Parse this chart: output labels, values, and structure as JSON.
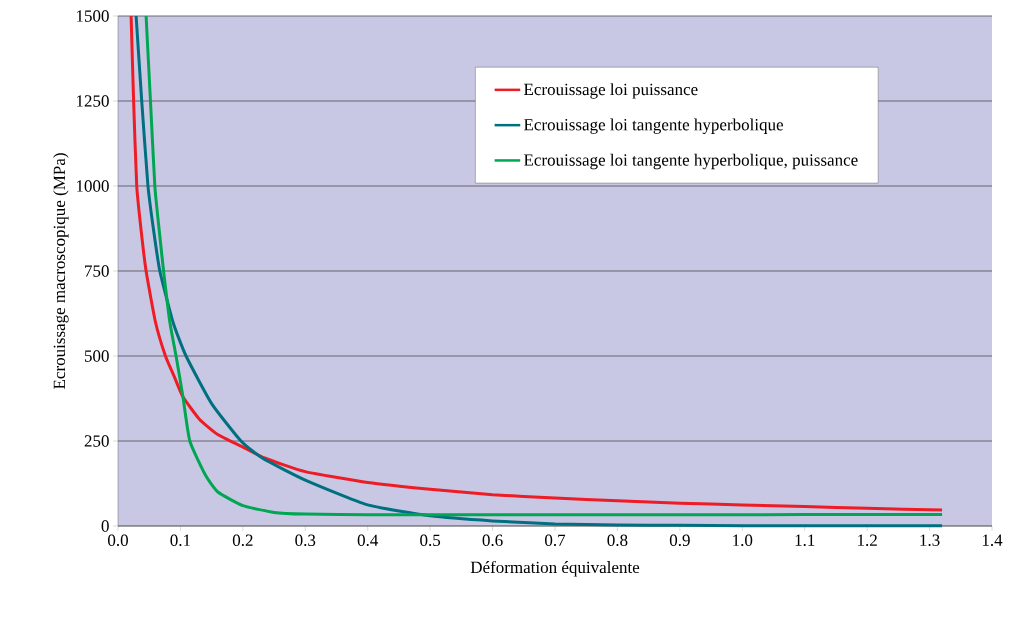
{
  "chart_data": {
    "type": "line",
    "xlabel": "Déformation équivalente",
    "ylabel": "Ecrouissage macroscopique (MPa)",
    "xlim": [
      0,
      1.4
    ],
    "ylim": [
      0,
      1500
    ],
    "xticks": [
      {
        "value": 0,
        "label": "0.0"
      },
      {
        "value": 0.1,
        "label": "0.1"
      },
      {
        "value": 0.2,
        "label": "0.2"
      },
      {
        "value": 0.3,
        "label": "0.3"
      },
      {
        "value": 0.4,
        "label": "0.4"
      },
      {
        "value": 0.5,
        "label": "0.5"
      },
      {
        "value": 0.6,
        "label": "0.6"
      },
      {
        "value": 0.7,
        "label": "0.7"
      },
      {
        "value": 0.8,
        "label": "0.8"
      },
      {
        "value": 0.9,
        "label": "0.9"
      },
      {
        "value": 1.0,
        "label": "1.0"
      },
      {
        "value": 1.1,
        "label": "1.1"
      },
      {
        "value": 1.2,
        "label": "1.2"
      },
      {
        "value": 1.3,
        "label": "1.3"
      },
      {
        "value": 1.4,
        "label": "1.4"
      }
    ],
    "yticks": [
      0,
      250,
      500,
      750,
      1000,
      1250,
      1500
    ],
    "grid": "y",
    "legend": "top right",
    "marker": "none",
    "line_style": "solid",
    "series": [
      {
        "name": "Ecrouissage loi puissance",
        "color": "#ee1c25",
        "x": [
          0.021,
          0.025,
          0.03,
          0.037,
          0.045,
          0.06,
          0.076,
          0.09,
          0.104,
          0.13,
          0.159,
          0.2,
          0.235,
          0.3,
          0.4,
          0.5,
          0.6,
          0.7,
          0.8,
          0.9,
          1.0,
          1.1,
          1.2,
          1.32
        ],
        "values": [
          1500,
          1250,
          1000,
          870,
          750,
          600,
          500,
          440,
          380,
          315,
          270,
          232,
          200,
          160,
          128,
          108,
          92,
          82,
          74,
          67,
          62,
          57,
          52,
          47
        ]
      },
      {
        "name": "Ecrouissage loi tangente hyperbolique",
        "color": "#006f7f",
        "x": [
          0.029,
          0.038,
          0.048,
          0.057,
          0.067,
          0.088,
          0.109,
          0.15,
          0.197,
          0.231,
          0.3,
          0.4,
          0.5,
          0.6,
          0.7,
          0.8,
          0.9,
          1.0,
          1.1,
          1.2,
          1.32
        ],
        "values": [
          1500,
          1250,
          1000,
          870,
          750,
          600,
          500,
          360,
          250,
          200,
          135,
          62,
          30,
          15,
          6,
          3,
          2,
          1,
          1,
          1,
          1
        ]
      },
      {
        "name": "Ecrouissage loi tangente hyperbolique, puissance",
        "color": "#00a651",
        "x": [
          0.045,
          0.052,
          0.059,
          0.066,
          0.073,
          0.083,
          0.093,
          0.104,
          0.115,
          0.14,
          0.16,
          0.2,
          0.25,
          0.3,
          0.4,
          0.6,
          0.8,
          1.0,
          1.2,
          1.32
        ],
        "values": [
          1500,
          1250,
          1000,
          870,
          750,
          600,
          500,
          380,
          250,
          150,
          100,
          60,
          40,
          35,
          33,
          33,
          33,
          33,
          34,
          34
        ]
      }
    ]
  }
}
